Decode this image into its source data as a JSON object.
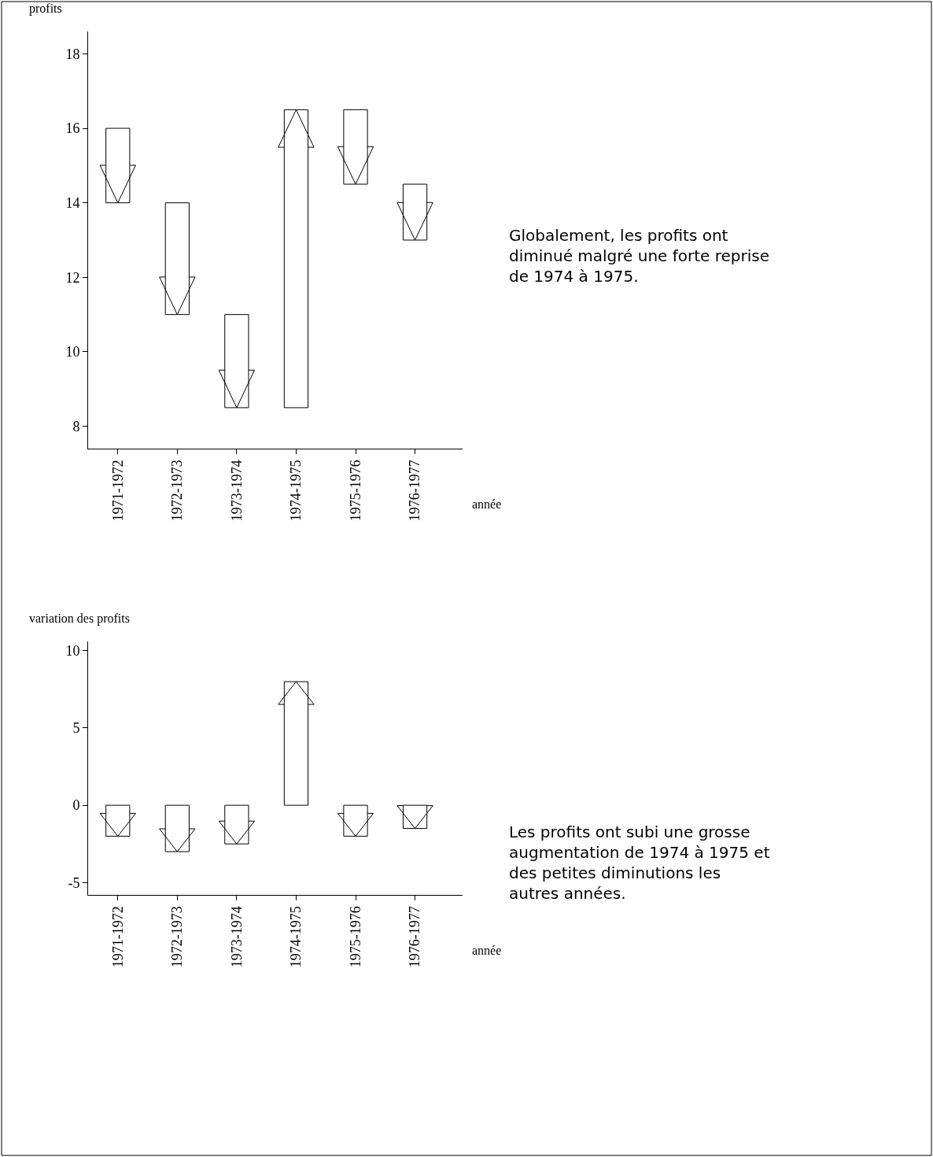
{
  "chart_data": [
    {
      "type": "bar",
      "ylabel": "profits",
      "xlabel": "année",
      "categories": [
        "1971-1972",
        "1972-1973",
        "1973-1974",
        "1974-1975",
        "1975-1976",
        "1976-1977"
      ],
      "base": [
        16,
        14,
        11,
        8.5,
        16.5,
        14.5
      ],
      "values": [
        -2,
        -3,
        -2.5,
        8,
        -2,
        -1.5
      ],
      "color": "#000000",
      "ylim": [
        7.4,
        18.6
      ],
      "yticks": [
        8,
        10,
        12,
        14,
        16,
        18
      ],
      "grid": false,
      "annotations": [
        "Globalement, les profits ont diminué malgré une forte reprise de 1974 à 1975."
      ]
    },
    {
      "type": "bar",
      "ylabel": "variation des profits",
      "xlabel": "année",
      "categories": [
        "1971-1972",
        "1972-1973",
        "1973-1974",
        "1974-1975",
        "1975-1976",
        "1976-1977"
      ],
      "base": [
        0,
        0,
        0,
        0,
        0,
        0
      ],
      "values": [
        -2,
        -3,
        -2.5,
        8,
        -2,
        -1.5
      ],
      "color": "#000000",
      "ylim": [
        -5.8,
        10.6
      ],
      "yticks": [
        -5,
        0,
        5,
        10
      ],
      "grid": false,
      "annotations": [
        "Les profits ont subi une grosse augmentation de 1974 à 1975 et des petites diminutions les autres années."
      ]
    }
  ]
}
